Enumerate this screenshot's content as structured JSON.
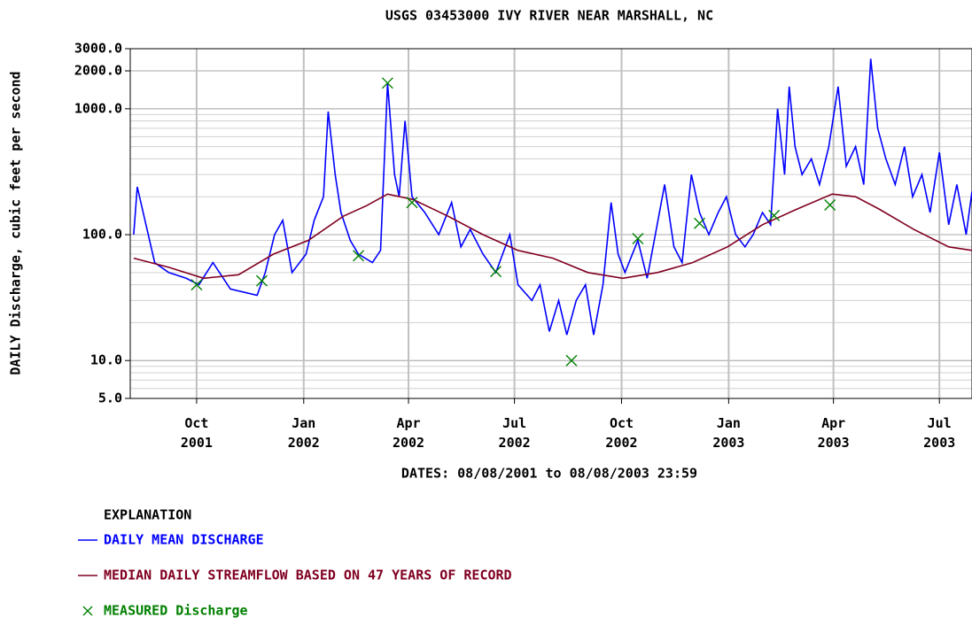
{
  "chart_data": {
    "type": "line",
    "title": "USGS 03453000 IVY RIVER NEAR MARSHALL, NC",
    "subtitle": "DATES: 08/08/2001 to 08/08/2003 23:59",
    "y_label": "DAILY Discharge, cubic feet per second",
    "legend_title": "EXPLANATION",
    "log_scale_y": true,
    "grid": true,
    "xlim": [
      -3,
      720
    ],
    "xticks": [
      {
        "value": 54,
        "label": "Oct 2001"
      },
      {
        "value": 146,
        "label": "Jan 2002"
      },
      {
        "value": 236,
        "label": "Apr 2002"
      },
      {
        "value": 327,
        "label": "Jul 2002"
      },
      {
        "value": 419,
        "label": "Oct 2002"
      },
      {
        "value": 511,
        "label": "Jan 2003"
      },
      {
        "value": 601,
        "label": "Apr 2003"
      },
      {
        "value": 692,
        "label": "Jul 2003"
      }
    ],
    "ylim": [
      5,
      3000
    ],
    "yticks": [
      {
        "value": 5,
        "label": "5.0"
      },
      {
        "value": 10,
        "label": "10.0"
      },
      {
        "value": 100,
        "label": "100.0"
      },
      {
        "value": 1000,
        "label": "1000.0"
      },
      {
        "value": 2000,
        "label": "2000.0"
      },
      {
        "value": 3000,
        "label": "3000.0"
      }
    ],
    "series": [
      {
        "name": "DAILY MEAN DISCHARGE",
        "color": "#0000ff",
        "kind": "line",
        "x": [
          0,
          3,
          18,
          30,
          45,
          56,
          68,
          83,
          106,
          113,
          121,
          128,
          136,
          148,
          155,
          163,
          167,
          173,
          178,
          186,
          193,
          205,
          212,
          218,
          224,
          228,
          233,
          239,
          250,
          262,
          273,
          281,
          289,
          300,
          311,
          323,
          330,
          342,
          349,
          357,
          365,
          372,
          380,
          388,
          395,
          403,
          410,
          416,
          422,
          433,
          441,
          448,
          456,
          464,
          471,
          479,
          486,
          494,
          502,
          509,
          517,
          525,
          532,
          540,
          547,
          553,
          559,
          563,
          568,
          574,
          582,
          589,
          597,
          605,
          612,
          620,
          627,
          633,
          639,
          646,
          654,
          662,
          669,
          677,
          684,
          692,
          700,
          707,
          715,
          720
        ],
        "values": [
          100,
          240,
          60,
          50,
          45,
          40,
          60,
          37,
          33,
          50,
          100,
          130,
          50,
          70,
          130,
          200,
          950,
          300,
          150,
          90,
          70,
          60,
          75,
          1600,
          300,
          200,
          800,
          200,
          150,
          100,
          180,
          80,
          110,
          70,
          50,
          100,
          40,
          30,
          40,
          17,
          30,
          16,
          30,
          40,
          16,
          40,
          180,
          70,
          50,
          90,
          45,
          100,
          250,
          80,
          60,
          300,
          150,
          100,
          150,
          200,
          100,
          80,
          100,
          150,
          120,
          1000,
          300,
          1500,
          500,
          300,
          400,
          250,
          500,
          1500,
          350,
          500,
          250,
          2500,
          700,
          400,
          250,
          500,
          200,
          300,
          150,
          450,
          120,
          250,
          100,
          220
        ]
      },
      {
        "name": "MEDIAN DAILY STREAMFLOW BASED ON 47 YEARS OF RECORD",
        "color": "#800020",
        "kind": "line",
        "x": [
          0,
          30,
          60,
          90,
          120,
          150,
          180,
          200,
          218,
          240,
          270,
          300,
          330,
          360,
          390,
          420,
          450,
          480,
          510,
          540,
          570,
          600,
          620,
          640,
          670,
          700,
          720
        ],
        "values": [
          65,
          55,
          45,
          48,
          70,
          90,
          140,
          170,
          210,
          190,
          140,
          100,
          75,
          65,
          50,
          45,
          50,
          60,
          80,
          120,
          160,
          210,
          200,
          160,
          110,
          80,
          75
        ]
      },
      {
        "name": "MEASURED Discharge",
        "color": "#008000",
        "kind": "marker",
        "x": [
          54,
          110,
          193,
          218,
          239,
          311,
          376,
          433,
          486,
          550,
          598
        ],
        "values": [
          40,
          43,
          68,
          1600,
          180,
          51,
          10,
          93,
          123,
          142,
          172
        ]
      }
    ]
  }
}
